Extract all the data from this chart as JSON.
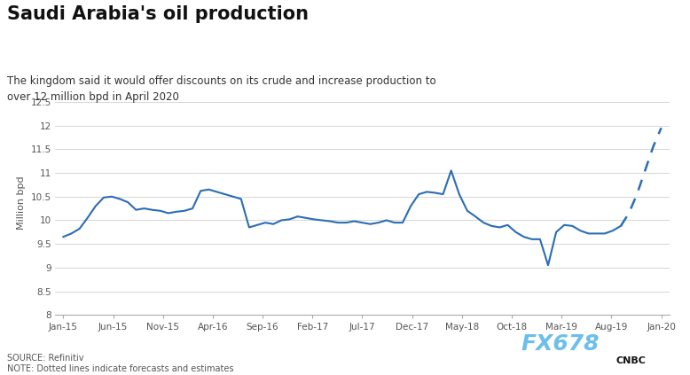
{
  "title": "Saudi Arabia's oil production",
  "subtitle": "The kingdom said it would offer discounts on its crude and increase production to\nover 12 million bpd in April 2020",
  "ylabel": "Million bpd",
  "source_text": "SOURCE: Refinitiv\nNOTE: Dotted lines indicate forecasts and estimates",
  "watermark": "FX678",
  "line_color": "#2a6db5",
  "background_color": "#ffffff",
  "ylim": [
    8.0,
    12.75
  ],
  "yticks": [
    8.0,
    8.5,
    9.0,
    9.5,
    10.0,
    10.5,
    11.0,
    11.5,
    12.0,
    12.5
  ],
  "xtick_labels": [
    "Jan-15",
    "Jun-15",
    "Nov-15",
    "Apr-16",
    "Sep-16",
    "Feb-17",
    "Jul-17",
    "Dec-17",
    "May-18",
    "Oct-18",
    "Mar-19",
    "Aug-19",
    "Jan-20"
  ],
  "solid_y": [
    9.65,
    9.72,
    9.82,
    10.05,
    10.3,
    10.48,
    10.5,
    10.45,
    10.38,
    10.22,
    10.25,
    10.22,
    10.2,
    10.15,
    10.18,
    10.2,
    10.25,
    10.62,
    10.65,
    10.6,
    10.55,
    10.5,
    10.45,
    9.85,
    9.9,
    9.95,
    9.92,
    10.0,
    10.02,
    10.08,
    10.05,
    10.02,
    10.0,
    9.98,
    9.95,
    9.95,
    9.98,
    9.95,
    9.92,
    9.95,
    10.0,
    9.95,
    9.95,
    10.3,
    10.55,
    10.6,
    10.58,
    10.55,
    11.05,
    10.55,
    10.2,
    10.08,
    9.95,
    9.88,
    9.85,
    9.9,
    9.75,
    9.65,
    9.6,
    9.6,
    9.05,
    9.75,
    9.9,
    9.88,
    9.78,
    9.72,
    9.72,
    9.72,
    9.78,
    9.88
  ],
  "dashed_y": [
    9.88,
    10.15,
    10.55,
    11.05,
    11.55,
    11.95
  ],
  "n_solid": 70,
  "n_total": 75
}
